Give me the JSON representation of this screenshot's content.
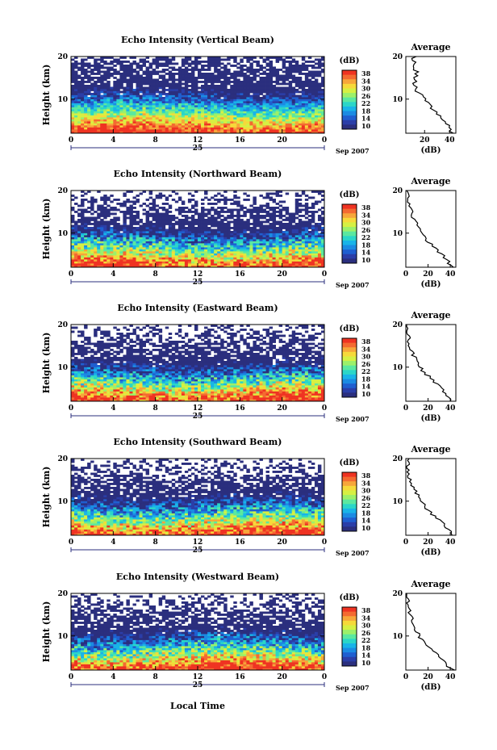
{
  "figure": {
    "date_label": "Sep 2007",
    "xlabel_bottom": "Local Time",
    "day_label": "25"
  },
  "colorbar": {
    "unit": "(dB)",
    "ticks": [
      "38",
      "34",
      "30",
      "26",
      "22",
      "18",
      "14",
      "10"
    ],
    "colors": [
      "#2b2f7e",
      "#2b3ea8",
      "#1f5fd0",
      "#1b8be3",
      "#19b4e8",
      "#2bd6c8",
      "#5be8a0",
      "#9cf06a",
      "#d6f043",
      "#f6d93a",
      "#f7a63a",
      "#f46a31",
      "#ef3322"
    ]
  },
  "chart_data": [
    {
      "type": "heatmap",
      "title": "Echo Intensity (Vertical Beam)",
      "xlabel": "",
      "ylabel": "Height (km)",
      "x_ticks": [
        "0",
        "4",
        "8",
        "12",
        "16",
        "20",
        "0"
      ],
      "y_ticks": [
        "20",
        "10"
      ],
      "xlim": [
        0,
        24
      ],
      "ylim": [
        2,
        20
      ],
      "value_range_db": [
        10,
        38
      ],
      "profile": {
        "title": "Average",
        "xlabel": "(dB)",
        "x_ticks": [
          "20",
          "40"
        ],
        "y_ticks": [
          "20",
          "10"
        ],
        "xlim": [
          5,
          45
        ],
        "height_km": [
          2,
          4,
          6,
          8,
          10,
          12,
          14,
          16,
          18,
          20
        ],
        "mean_db": [
          42,
          38,
          32,
          26,
          20,
          14,
          12,
          14,
          11,
          12
        ]
      }
    },
    {
      "type": "heatmap",
      "title": "Echo Intensity (Northward Beam)",
      "xlabel": "",
      "ylabel": "Height (km)",
      "x_ticks": [
        "0",
        "4",
        "8",
        "12",
        "16",
        "20",
        "0"
      ],
      "y_ticks": [
        "20",
        "10"
      ],
      "xlim": [
        0,
        24
      ],
      "ylim": [
        2,
        20
      ],
      "value_range_db": [
        10,
        38
      ],
      "profile": {
        "title": "Average",
        "xlabel": "(dB)",
        "x_ticks": [
          "0",
          "20",
          "40"
        ],
        "y_ticks": [
          "20",
          "10"
        ],
        "xlim": [
          0,
          45
        ],
        "height_km": [
          2,
          4,
          6,
          8,
          10,
          12,
          14,
          16,
          18,
          20
        ],
        "mean_db": [
          42,
          36,
          28,
          20,
          14,
          10,
          6,
          4,
          2,
          1
        ]
      }
    },
    {
      "type": "heatmap",
      "title": "Echo Intensity (Eastward Beam)",
      "xlabel": "",
      "ylabel": "Height (km)",
      "x_ticks": [
        "0",
        "4",
        "8",
        "12",
        "16",
        "20",
        "0"
      ],
      "y_ticks": [
        "20",
        "10"
      ],
      "xlim": [
        0,
        24
      ],
      "ylim": [
        2,
        20
      ],
      "value_range_db": [
        10,
        38
      ],
      "profile": {
        "title": "Average",
        "xlabel": "(dB)",
        "x_ticks": [
          "0",
          "20",
          "40"
        ],
        "y_ticks": [
          "20",
          "10"
        ],
        "xlim": [
          0,
          45
        ],
        "height_km": [
          2,
          4,
          6,
          8,
          10,
          12,
          14,
          16,
          18,
          20
        ],
        "mean_db": [
          42,
          36,
          28,
          20,
          12,
          8,
          5,
          3,
          2,
          1
        ]
      }
    },
    {
      "type": "heatmap",
      "title": "Echo Intensity (Southward Beam)",
      "xlabel": "",
      "ylabel": "Height (km)",
      "x_ticks": [
        "0",
        "4",
        "8",
        "12",
        "16",
        "20",
        "0"
      ],
      "y_ticks": [
        "20",
        "10"
      ],
      "xlim": [
        0,
        24
      ],
      "ylim": [
        2,
        20
      ],
      "value_range_db": [
        10,
        38
      ],
      "profile": {
        "title": "Average",
        "xlabel": "(dB)",
        "x_ticks": [
          "0",
          "20",
          "40"
        ],
        "y_ticks": [
          "20",
          "10"
        ],
        "xlim": [
          0,
          45
        ],
        "height_km": [
          2,
          4,
          6,
          8,
          10,
          12,
          14,
          16,
          18,
          20
        ],
        "mean_db": [
          42,
          36,
          28,
          20,
          14,
          9,
          5,
          3,
          2,
          1
        ]
      }
    },
    {
      "type": "heatmap",
      "title": "Echo Intensity (Westward Beam)",
      "xlabel": "Local Time",
      "ylabel": "Height (km)",
      "x_ticks": [
        "0",
        "4",
        "8",
        "12",
        "16",
        "20",
        "0"
      ],
      "y_ticks": [
        "20",
        "10"
      ],
      "xlim": [
        0,
        24
      ],
      "ylim": [
        2,
        20
      ],
      "value_range_db": [
        10,
        38
      ],
      "profile": {
        "title": "Average",
        "xlabel": "(dB)",
        "x_ticks": [
          "0",
          "20",
          "40"
        ],
        "y_ticks": [
          "20",
          "10"
        ],
        "xlim": [
          0,
          45
        ],
        "height_km": [
          2,
          4,
          6,
          8,
          10,
          12,
          14,
          16,
          18,
          20
        ],
        "mean_db": [
          42,
          34,
          26,
          18,
          12,
          8,
          5,
          3,
          2,
          1
        ]
      }
    }
  ]
}
